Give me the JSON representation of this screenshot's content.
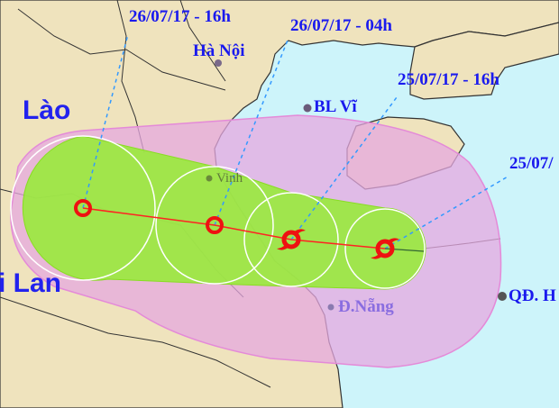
{
  "map": {
    "colors": {
      "land": "#efe3bd",
      "sea": "#cdf4fa",
      "risk_zone": "#ecb4e2",
      "risk_zone_sea": "#d8c3f2",
      "strong_wind_zone": "#99ea3c",
      "track": "#ff2222",
      "label": "#1a1aee"
    },
    "forecast_times": [
      "26/07/17 - 16h",
      "26/07/17 - 04h",
      "25/07/17 - 16h",
      "25/07/"
    ],
    "countries": [
      "Lào",
      "i Lan"
    ],
    "places": [
      {
        "name": "Hà Nội",
        "icon": "city-dot-icon"
      },
      {
        "name": "BL Vĩ",
        "icon": "island-dot-icon"
      },
      {
        "name": "Vinh",
        "icon": "city-dot-icon"
      },
      {
        "name": "Đ.Nẵng",
        "icon": "city-dot-icon"
      },
      {
        "name": "QĐ. H",
        "icon": "island-dot-icon"
      }
    ],
    "storm_icon": "typhoon-icon"
  }
}
